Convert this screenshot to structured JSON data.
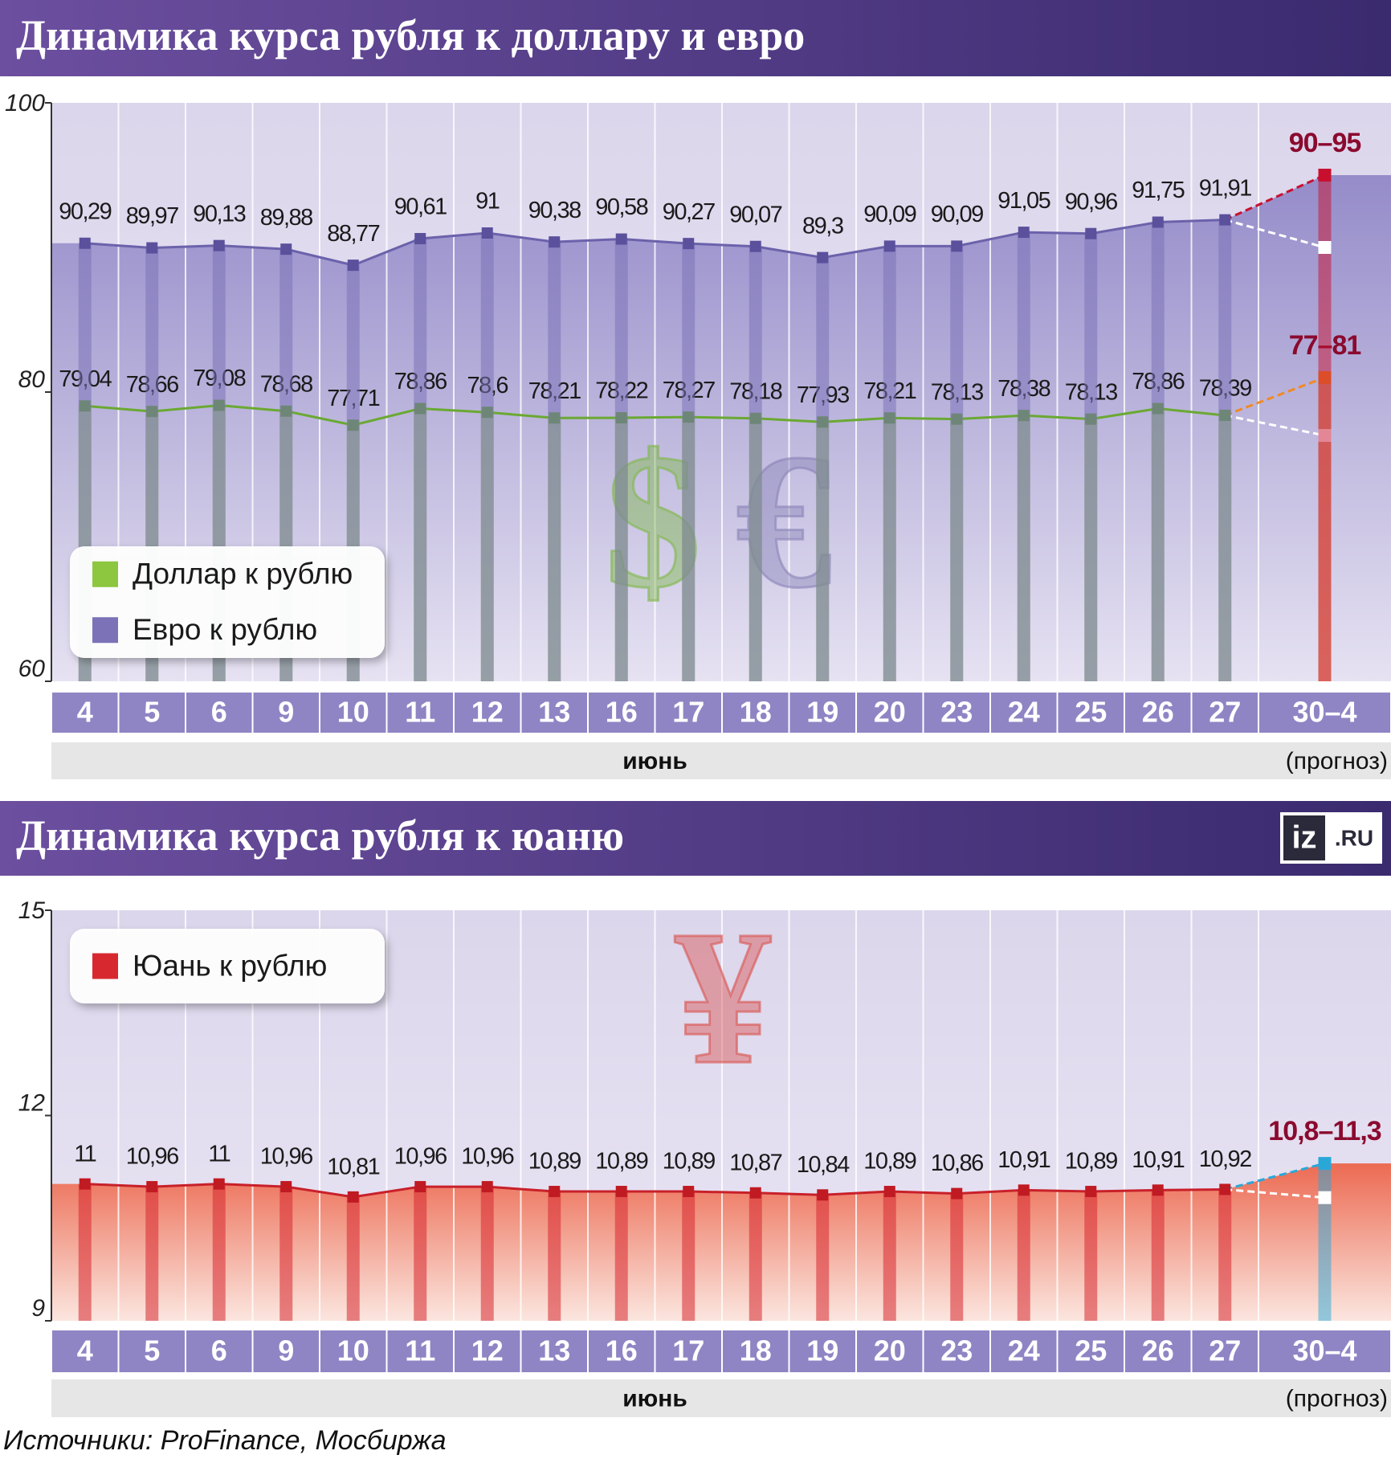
{
  "chart_data": [
    {
      "type": "line",
      "title": "Динамика курса рубля к доллару и евро",
      "categories": [
        "4",
        "5",
        "6",
        "9",
        "10",
        "11",
        "12",
        "13",
        "16",
        "17",
        "18",
        "19",
        "20",
        "23",
        "24",
        "25",
        "26",
        "27",
        "30–4"
      ],
      "series": [
        {
          "name": "Доллар к рублю",
          "color": "#8dc63f",
          "values": [
            79.04,
            78.66,
            79.08,
            78.68,
            77.71,
            78.86,
            78.6,
            78.21,
            78.22,
            78.27,
            78.18,
            77.93,
            78.21,
            78.13,
            78.38,
            78.13,
            78.86,
            78.39,
            null
          ],
          "value_labels": [
            "79,04",
            "78,66",
            "79,08",
            "78,68",
            "77,71",
            "78,86",
            "78,6",
            "78,21",
            "78,22",
            "78,27",
            "78,18",
            "77,93",
            "78,21",
            "78,13",
            "78,38",
            "78,13",
            "78,86",
            "78,39",
            null
          ],
          "forecast": {
            "label": "77–81",
            "low": 77,
            "high": 81,
            "color": "#f08a24"
          }
        },
        {
          "name": "Евро к рублю",
          "color": "#7b72b8",
          "values": [
            90.29,
            89.97,
            90.13,
            89.88,
            88.77,
            90.61,
            91,
            90.38,
            90.58,
            90.27,
            90.07,
            89.3,
            90.09,
            90.09,
            91.05,
            90.96,
            91.75,
            91.91,
            null
          ],
          "value_labels": [
            "90,29",
            "89,97",
            "90,13",
            "89,88",
            "88,77",
            "90,61",
            "91",
            "90,38",
            "90,58",
            "90,27",
            "90,07",
            "89,3",
            "90,09",
            "90,09",
            "91,05",
            "90,96",
            "91,75",
            "91,91",
            null
          ],
          "forecast": {
            "label": "90–95",
            "low": 90,
            "high": 95,
            "color": "#c8102e"
          }
        }
      ],
      "ylim": [
        60,
        100
      ],
      "yticks": [
        60,
        80,
        100
      ],
      "xlabel": "июнь",
      "note": "(прогноз)",
      "symbols": [
        "$",
        "€"
      ]
    },
    {
      "type": "line",
      "title": "Динамика курса рубля к юаню",
      "categories": [
        "4",
        "5",
        "6",
        "9",
        "10",
        "11",
        "12",
        "13",
        "16",
        "17",
        "18",
        "19",
        "20",
        "23",
        "24",
        "25",
        "26",
        "27",
        "30–4"
      ],
      "series": [
        {
          "name": "Юань к рублю",
          "color": "#d7282f",
          "values": [
            11,
            10.96,
            11,
            10.96,
            10.81,
            10.96,
            10.96,
            10.89,
            10.89,
            10.89,
            10.87,
            10.84,
            10.89,
            10.86,
            10.91,
            10.89,
            10.91,
            10.92,
            null
          ],
          "value_labels": [
            "11",
            "10,96",
            "11",
            "10,96",
            "10,81",
            "10,96",
            "10,96",
            "10,89",
            "10,89",
            "10,89",
            "10,87",
            "10,84",
            "10,89",
            "10,86",
            "10,91",
            "10,89",
            "10,91",
            "10,92",
            null
          ],
          "forecast": {
            "label": "10,8–11,3",
            "low": 10.8,
            "high": 11.3,
            "color": "#29a8d8"
          }
        }
      ],
      "ylim": [
        9,
        15
      ],
      "yticks": [
        9,
        12,
        15
      ],
      "xlabel": "июнь",
      "note": "(прогноз)",
      "symbols": [
        "¥"
      ]
    }
  ],
  "logo": [
    "iz",
    ".RU"
  ],
  "source": "Источники: ProFinance, Мосбиржа"
}
